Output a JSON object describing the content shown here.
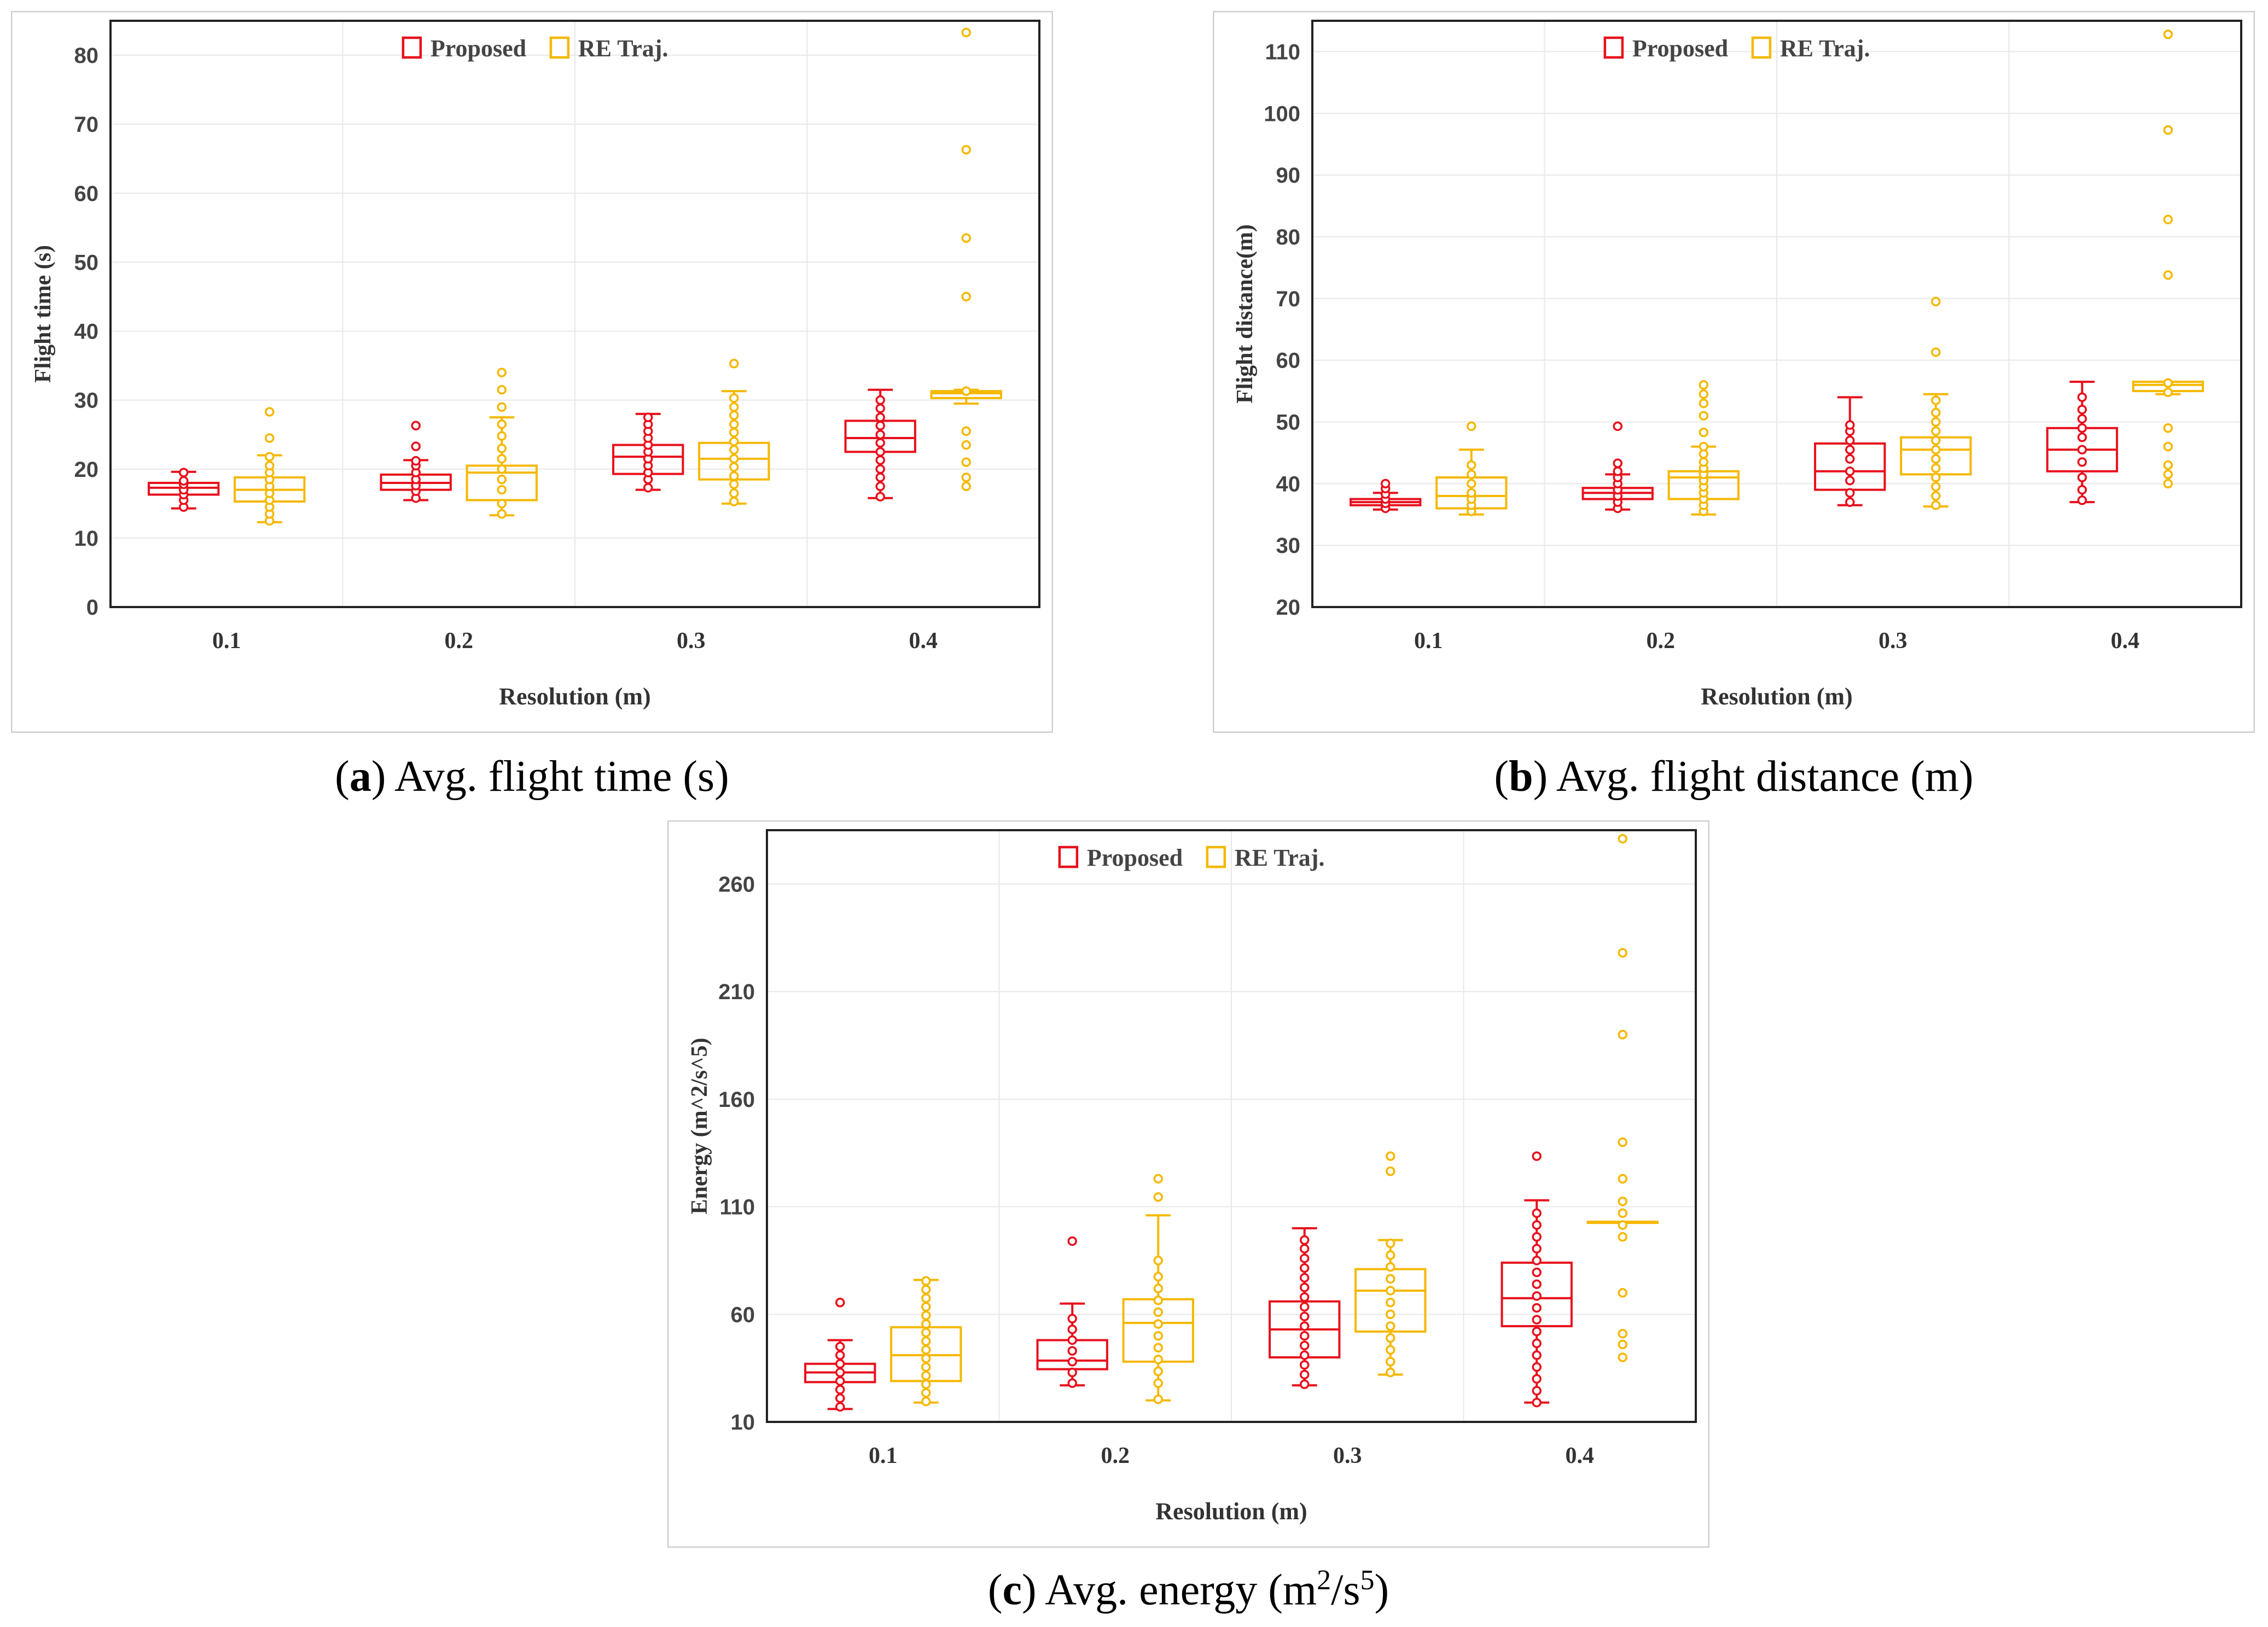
{
  "colors": {
    "proposed": "#e8101c",
    "re_traj": "#f5b800",
    "axis": "#222222",
    "grid": "#e8e8e8",
    "frame": "#cfcfcf"
  },
  "captions": [
    {
      "letter": "a",
      "text": "Avg. flight time (s)"
    },
    {
      "letter": "b",
      "text": "Avg. flight distance (m)"
    },
    {
      "letter": "c",
      "text_main": "Avg. energy (m",
      "sup1": "2",
      "mid": "/s",
      "sup2": "5",
      "end": ")"
    }
  ],
  "chart_data": [
    {
      "type": "box",
      "xlabel": "Resolution (m)",
      "ylabel": "Flight time (s)",
      "ylim": [
        0,
        85
      ],
      "yticks": [
        0,
        10,
        20,
        30,
        40,
        50,
        60,
        70,
        80
      ],
      "categories": [
        "0.1",
        "0.2",
        "0.3",
        "0.4"
      ],
      "legend": {
        "position": "top-center",
        "entries": [
          "Proposed",
          "RE Traj."
        ]
      },
      "series": [
        {
          "name": "Proposed",
          "boxes": [
            {
              "whisker_low": 14.3,
              "q1": 16.3,
              "median": 17.3,
              "q3": 18.0,
              "whisker_high": 19.6,
              "points": [
                14.5,
                15.5,
                16.3,
                17.0,
                17.8,
                18.3,
                19.5
              ]
            },
            {
              "whisker_low": 15.5,
              "q1": 17.0,
              "median": 18.0,
              "q3": 19.2,
              "whisker_high": 21.3,
              "points": [
                15.8,
                16.8,
                17.6,
                18.5,
                19.5,
                20.5,
                21.2,
                23.3,
                26.3
              ]
            },
            {
              "whisker_low": 17.0,
              "q1": 19.3,
              "median": 21.8,
              "q3": 23.5,
              "whisker_high": 28.0,
              "points": [
                17.3,
                18.5,
                19.5,
                20.5,
                21.5,
                22.5,
                23.5,
                24.5,
                25.5,
                26.5,
                27.5
              ]
            },
            {
              "whisker_low": 15.8,
              "q1": 22.5,
              "median": 24.5,
              "q3": 27.0,
              "whisker_high": 31.5,
              "points": [
                16.0,
                17.5,
                18.8,
                20.0,
                21.3,
                22.5,
                23.8,
                25.0,
                26.3,
                27.5,
                28.8,
                30.0
              ]
            }
          ]
        },
        {
          "name": "RE Traj.",
          "boxes": [
            {
              "whisker_low": 12.3,
              "q1": 15.3,
              "median": 17.0,
              "q3": 18.8,
              "whisker_high": 22.0,
              "points": [
                12.5,
                13.5,
                14.5,
                15.5,
                16.5,
                17.5,
                18.5,
                19.5,
                20.5,
                21.8,
                24.5,
                28.3
              ]
            },
            {
              "whisker_low": 13.3,
              "q1": 15.5,
              "median": 19.5,
              "q3": 20.5,
              "whisker_high": 27.5,
              "points": [
                13.5,
                15.0,
                17.0,
                18.5,
                20.0,
                21.5,
                23.0,
                24.8,
                26.5,
                29.0,
                31.5,
                34.0
              ]
            },
            {
              "whisker_low": 15.0,
              "q1": 18.5,
              "median": 21.5,
              "q3": 23.8,
              "whisker_high": 31.3,
              "points": [
                15.3,
                16.5,
                17.8,
                19.0,
                20.3,
                21.5,
                22.8,
                24.0,
                25.3,
                26.5,
                27.8,
                29.0,
                30.3,
                35.3
              ]
            },
            {
              "whisker_low": 29.5,
              "q1": 30.3,
              "median": 31.0,
              "q3": 31.3,
              "whisker_high": 31.5,
              "points": [
                17.5,
                18.8,
                21.0,
                23.5,
                25.5,
                31.3,
                45.0,
                53.5,
                66.3,
                83.3
              ]
            }
          ]
        }
      ]
    },
    {
      "type": "box",
      "xlabel": "Resolution (m)",
      "ylabel": "Flight distance(m)",
      "ylim": [
        20,
        115
      ],
      "yticks": [
        20,
        30,
        40,
        50,
        60,
        70,
        80,
        90,
        100,
        110
      ],
      "categories": [
        "0.1",
        "0.2",
        "0.3",
        "0.4"
      ],
      "legend": {
        "position": "top-center",
        "entries": [
          "Proposed",
          "RE Traj."
        ]
      },
      "series": [
        {
          "name": "Proposed",
          "boxes": [
            {
              "whisker_low": 35.8,
              "q1": 36.5,
              "median": 37.0,
              "q3": 37.5,
              "whisker_high": 38.5,
              "points": [
                36.0,
                36.8,
                37.5,
                38.3,
                39.2,
                40.0
              ]
            },
            {
              "whisker_low": 35.8,
              "q1": 37.5,
              "median": 38.5,
              "q3": 39.3,
              "whisker_high": 41.5,
              "points": [
                36.0,
                37.0,
                38.0,
                39.0,
                40.0,
                41.0,
                42.0,
                43.3,
                49.3
              ]
            },
            {
              "whisker_low": 36.5,
              "q1": 39.0,
              "median": 42.0,
              "q3": 46.5,
              "whisker_high": 54.0,
              "points": [
                37.0,
                38.5,
                40.5,
                42.0,
                44.0,
                45.5,
                47.0,
                48.5,
                49.5
              ]
            },
            {
              "whisker_low": 37.0,
              "q1": 42.0,
              "median": 45.5,
              "q3": 49.0,
              "whisker_high": 56.5,
              "points": [
                37.3,
                39.0,
                41.0,
                43.5,
                45.5,
                47.5,
                49.0,
                50.5,
                52.0,
                54.0
              ]
            }
          ]
        },
        {
          "name": "RE Traj.",
          "boxes": [
            {
              "whisker_low": 35.0,
              "q1": 36.0,
              "median": 38.0,
              "q3": 41.0,
              "whisker_high": 45.5,
              "points": [
                35.5,
                36.5,
                37.5,
                38.5,
                40.0,
                41.5,
                43.0,
                49.3
              ]
            },
            {
              "whisker_low": 35.0,
              "q1": 37.5,
              "median": 41.0,
              "q3": 42.0,
              "whisker_high": 46.0,
              "points": [
                35.5,
                36.5,
                37.5,
                38.5,
                39.5,
                40.5,
                41.5,
                42.5,
                43.5,
                44.8,
                46.0,
                48.3,
                51.0,
                53.0,
                54.5,
                56.0
              ]
            },
            {
              "whisker_low": 36.3,
              "q1": 41.5,
              "median": 45.5,
              "q3": 47.5,
              "whisker_high": 54.5,
              "points": [
                36.5,
                38.0,
                39.5,
                41.0,
                42.5,
                44.0,
                45.5,
                47.0,
                48.5,
                50.0,
                51.5,
                53.5,
                61.3,
                69.5
              ]
            },
            {
              "whisker_low": 54.5,
              "q1": 55.0,
              "median": 56.0,
              "q3": 56.5,
              "whisker_high": 56.5,
              "points": [
                40.0,
                41.5,
                43.0,
                46.0,
                49.0,
                54.8,
                56.3,
                73.8,
                82.8,
                97.3,
                112.8
              ]
            }
          ]
        }
      ]
    },
    {
      "type": "box",
      "xlabel": "Resolution (m)",
      "ylabel": "Energy (m^2/s^5)",
      "ylim": [
        10,
        285
      ],
      "yticks": [
        10,
        60,
        110,
        160,
        210,
        260
      ],
      "categories": [
        "0.1",
        "0.2",
        "0.3",
        "0.4"
      ],
      "legend": {
        "position": "top-center",
        "entries": [
          "Proposed",
          "RE Traj."
        ]
      },
      "series": [
        {
          "name": "Proposed",
          "boxes": [
            {
              "whisker_low": 16.0,
              "q1": 28.5,
              "median": 33.0,
              "q3": 37.0,
              "whisker_high": 48.0,
              "points": [
                17.0,
                21.0,
                25.0,
                29.0,
                33.0,
                37.0,
                41.0,
                45.0,
                65.5
              ]
            },
            {
              "whisker_low": 27.0,
              "q1": 34.5,
              "median": 38.5,
              "q3": 48.0,
              "whisker_high": 65.0,
              "points": [
                28.0,
                33.0,
                38.0,
                43.0,
                48.0,
                53.0,
                58.0,
                94.0
              ]
            },
            {
              "whisker_low": 27.0,
              "q1": 40.0,
              "median": 53.0,
              "q3": 66.0,
              "whisker_high": 100.0,
              "points": [
                27.5,
                32.0,
                36.5,
                41.0,
                45.5,
                50.0,
                54.5,
                59.0,
                63.5,
                68.0,
                72.5,
                77.0,
                81.5,
                86.0,
                90.5,
                94.5
              ]
            },
            {
              "whisker_low": 19.0,
              "q1": 54.5,
              "median": 67.5,
              "q3": 84.0,
              "whisker_high": 113.0,
              "points": [
                19.0,
                24.5,
                30.0,
                35.5,
                41.0,
                46.5,
                52.0,
                57.5,
                63.0,
                68.5,
                74.0,
                79.5,
                85.0,
                90.5,
                96.0,
                101.5,
                107.0,
                133.5
              ]
            }
          ]
        },
        {
          "name": "RE Traj.",
          "boxes": [
            {
              "whisker_low": 19.0,
              "q1": 29.0,
              "median": 41.0,
              "q3": 54.0,
              "whisker_high": 76.0,
              "points": [
                19.5,
                23.5,
                27.5,
                31.5,
                35.5,
                39.5,
                43.5,
                47.5,
                51.5,
                55.5,
                59.5,
                63.5,
                67.5,
                71.5,
                75.5
              ]
            },
            {
              "whisker_low": 20.0,
              "q1": 38.0,
              "median": 56.0,
              "q3": 67.0,
              "whisker_high": 106.0,
              "points": [
                20.5,
                28.0,
                33.5,
                39.0,
                44.5,
                50.0,
                55.5,
                61.0,
                66.5,
                72.0,
                77.5,
                85.0,
                114.5,
                123.0
              ]
            },
            {
              "whisker_low": 32.0,
              "q1": 52.0,
              "median": 71.0,
              "q3": 81.0,
              "whisker_high": 94.5,
              "points": [
                33.0,
                38.0,
                43.5,
                49.0,
                54.5,
                60.0,
                65.5,
                71.0,
                76.5,
                82.0,
                87.5,
                93.0,
                126.5,
                133.5
              ]
            },
            {
              "whisker_low": 103.0,
              "q1": 103.0,
              "median": 103.0,
              "q3": 103.0,
              "whisker_high": 103.0,
              "points": [
                40.0,
                46.0,
                51.0,
                70.0,
                96.0,
                101.5,
                107.0,
                112.5,
                123.0,
                140.0,
                190.0,
                228.0,
                281.0
              ]
            }
          ]
        }
      ]
    }
  ]
}
